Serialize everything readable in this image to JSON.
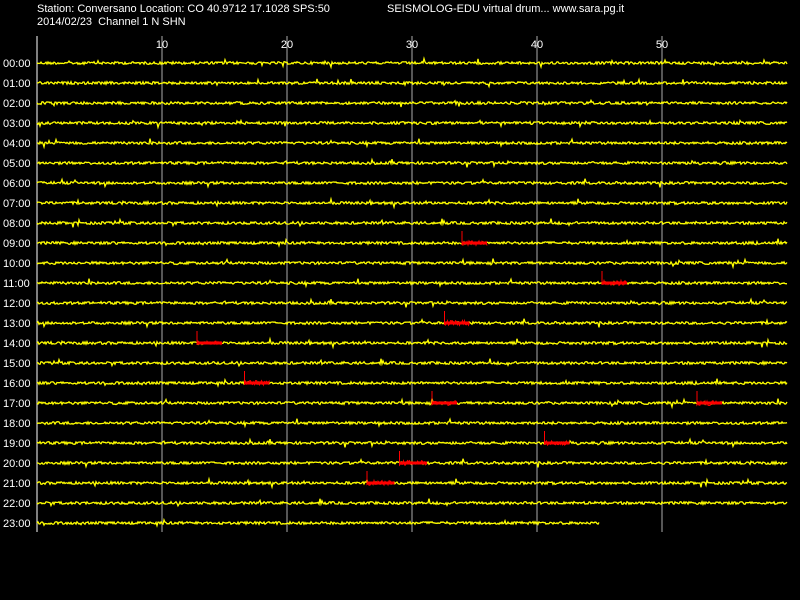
{
  "header": {
    "station_line": "Station: Conversano Location: CO 40.9712 17.1028 SPS:50",
    "date_line": "2014/02/23  Channel 1 N SHN",
    "title_line": "SEISMOLOG-EDU virtual drum... www.sara.pg.it"
  },
  "colors": {
    "background": "#000000",
    "trace": "#ffff00",
    "event": "#ff0000",
    "grid": "#ffffff",
    "text": "#ffffff"
  },
  "minute_ticks": [
    "10",
    "20",
    "30",
    "40",
    "50"
  ],
  "hours": [
    "00:00",
    "01:00",
    "02:00",
    "03:00",
    "04:00",
    "05:00",
    "06:00",
    "07:00",
    "08:00",
    "09:00",
    "10:00",
    "11:00",
    "12:00",
    "13:00",
    "14:00",
    "15:00",
    "16:00",
    "17:00",
    "18:00",
    "19:00",
    "20:00",
    "21:00",
    "22:00",
    "23:00"
  ],
  "last_row_end_minute": 45,
  "event_marks": [
    {
      "hour": 9,
      "start_min": 34.0,
      "end_min": 36.0
    },
    {
      "hour": 11,
      "start_min": 45.2,
      "end_min": 47.2
    },
    {
      "hour": 13,
      "start_min": 32.6,
      "end_min": 34.6
    },
    {
      "hour": 14,
      "start_min": 12.8,
      "end_min": 14.8
    },
    {
      "hour": 16,
      "start_min": 16.6,
      "end_min": 18.6
    },
    {
      "hour": 17,
      "start_min": 31.6,
      "end_min": 33.6
    },
    {
      "hour": 17,
      "start_min": 52.8,
      "end_min": 54.8
    },
    {
      "hour": 19,
      "start_min": 40.6,
      "end_min": 42.6
    },
    {
      "hour": 20,
      "start_min": 29.0,
      "end_min": 31.2
    },
    {
      "hour": 21,
      "start_min": 26.4,
      "end_min": 28.6
    }
  ]
}
